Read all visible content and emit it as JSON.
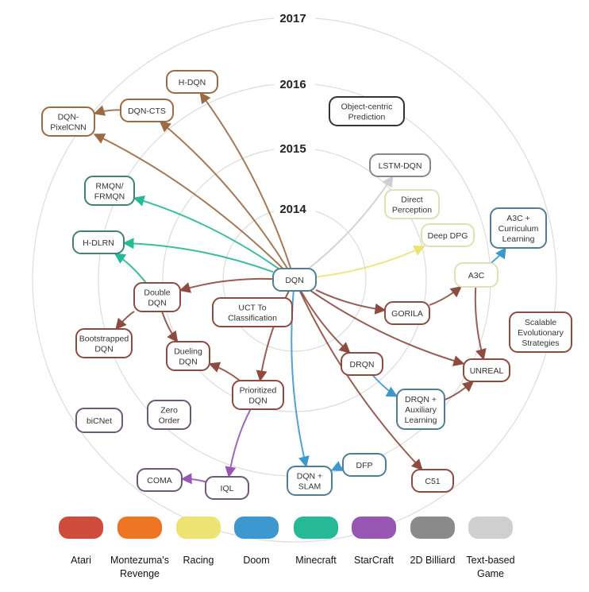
{
  "years": [
    "2014",
    "2015",
    "2016",
    "2017"
  ],
  "categories": {
    "atari": {
      "label": "Atari",
      "color": "#cf4b3c",
      "border": "#8e4b40"
    },
    "montezuma": {
      "label": "Montezuma's Revenge",
      "color": "#ee7524",
      "border": "#9c6a44"
    },
    "racing": {
      "label": "Racing",
      "color": "#ece373",
      "border": "#dfe0b8"
    },
    "doom": {
      "label": "Doom",
      "color": "#3d98d0",
      "border": "#4f7f92"
    },
    "minecraft": {
      "label": "Minecraft",
      "color": "#27b896",
      "border": "#3f8276"
    },
    "starcraft": {
      "label": "StarCraft",
      "color": "#9656b2",
      "border": "#6e5a78"
    },
    "billiard": {
      "label": "2D Billiard",
      "color": "#8a8a8a",
      "border": "#333333"
    },
    "text": {
      "label": "Text-based Game",
      "color": "#cfcfcf",
      "border": "#888888"
    }
  },
  "legend_order": [
    "atari",
    "montezuma",
    "racing",
    "doom",
    "minecraft",
    "starcraft",
    "billiard",
    "text"
  ],
  "legend_lines": {
    "atari": [
      "Atari"
    ],
    "montezuma": [
      "Montezuma's",
      "Revenge"
    ],
    "racing": [
      "Racing"
    ],
    "doom": [
      "Doom"
    ],
    "minecraft": [
      "Minecraft"
    ],
    "starcraft": [
      "StarCraft"
    ],
    "billiard": [
      "2D Billiard"
    ],
    "text": [
      "Text-based",
      "Game"
    ]
  },
  "nodes": [
    {
      "id": "hdqn",
      "lines": [
        "H-DQN"
      ],
      "cat": "montezuma"
    },
    {
      "id": "dqncts",
      "lines": [
        "DQN-CTS"
      ],
      "cat": "montezuma"
    },
    {
      "id": "pixelcnn",
      "lines": [
        "DQN-",
        "PixelCNN"
      ],
      "cat": "montezuma"
    },
    {
      "id": "objpred",
      "lines": [
        "Object-centric",
        "Prediction"
      ],
      "cat": "billiard"
    },
    {
      "id": "lstm",
      "lines": [
        "LSTM-DQN"
      ],
      "cat": "text"
    },
    {
      "id": "rmqn",
      "lines": [
        "RMQN/",
        "FRMQN"
      ],
      "cat": "minecraft"
    },
    {
      "id": "directp",
      "lines": [
        "Direct",
        "Perception"
      ],
      "cat": "racing"
    },
    {
      "id": "ddpg",
      "lines": [
        "Deep DPG"
      ],
      "cat": "racing"
    },
    {
      "id": "a3ccl",
      "lines": [
        "A3C +",
        "Curriculum",
        "Learning"
      ],
      "cat": "doom"
    },
    {
      "id": "hdlrn",
      "lines": [
        "H-DLRN"
      ],
      "cat": "minecraft"
    },
    {
      "id": "dqn",
      "lines": [
        "DQN"
      ],
      "cat": "doom"
    },
    {
      "id": "a3c",
      "lines": [
        "A3C"
      ],
      "cat": "racing"
    },
    {
      "id": "double",
      "lines": [
        "Double",
        "DQN"
      ],
      "cat": "atari"
    },
    {
      "id": "uct",
      "lines": [
        "UCT To",
        "Classification"
      ],
      "cat": "atari"
    },
    {
      "id": "gorila",
      "lines": [
        "GORILA"
      ],
      "cat": "atari"
    },
    {
      "id": "boot",
      "lines": [
        "Bootstrapped",
        "DQN"
      ],
      "cat": "atari"
    },
    {
      "id": "ses",
      "lines": [
        "Scalable",
        "Evolutionary",
        "Strategies"
      ],
      "cat": "atari"
    },
    {
      "id": "dueling",
      "lines": [
        "Dueling",
        "DQN"
      ],
      "cat": "atari"
    },
    {
      "id": "drqn",
      "lines": [
        "DRQN"
      ],
      "cat": "atari"
    },
    {
      "id": "unreal",
      "lines": [
        "UNREAL"
      ],
      "cat": "atari"
    },
    {
      "id": "prior",
      "lines": [
        "Prioritized",
        "DQN"
      ],
      "cat": "atari"
    },
    {
      "id": "drqnaux",
      "lines": [
        "DRQN +",
        "Auxiliary",
        "Learning"
      ],
      "cat": "doom"
    },
    {
      "id": "bicnet",
      "lines": [
        "biCNet"
      ],
      "cat": "starcraft"
    },
    {
      "id": "zero",
      "lines": [
        "Zero",
        "Order"
      ],
      "cat": "starcraft"
    },
    {
      "id": "dfp",
      "lines": [
        "DFP"
      ],
      "cat": "doom"
    },
    {
      "id": "slam",
      "lines": [
        "DQN +",
        "SLAM"
      ],
      "cat": "doom"
    },
    {
      "id": "c51",
      "lines": [
        "C51"
      ],
      "cat": "atari"
    },
    {
      "id": "coma",
      "lines": [
        "COMA"
      ],
      "cat": "starcraft"
    },
    {
      "id": "iql",
      "lines": [
        "IQL"
      ],
      "cat": "starcraft"
    }
  ],
  "edges": [
    {
      "from": "dqn",
      "to": "hdqn",
      "cat": "montezuma"
    },
    {
      "from": "dqn",
      "to": "dqncts",
      "cat": "montezuma"
    },
    {
      "from": "dqn",
      "to": "pixelcnn",
      "cat": "montezuma"
    },
    {
      "from": "dqncts",
      "to": "pixelcnn",
      "cat": "montezuma"
    },
    {
      "from": "dqn",
      "to": "rmqn",
      "cat": "minecraft"
    },
    {
      "from": "dqn",
      "to": "hdlrn",
      "cat": "minecraft"
    },
    {
      "from": "double",
      "to": "hdlrn",
      "cat": "minecraft"
    },
    {
      "from": "dqn",
      "to": "lstm",
      "cat": "text"
    },
    {
      "from": "dqn",
      "to": "ddpg",
      "cat": "racing"
    },
    {
      "from": "dqn",
      "to": "double",
      "cat": "atari"
    },
    {
      "from": "double",
      "to": "boot",
      "cat": "atari"
    },
    {
      "from": "double",
      "to": "dueling",
      "cat": "atari"
    },
    {
      "from": "prior",
      "to": "dueling",
      "cat": "atari"
    },
    {
      "from": "dqn",
      "to": "prior",
      "cat": "atari"
    },
    {
      "from": "dqn",
      "to": "gorila",
      "cat": "atari"
    },
    {
      "from": "gorila",
      "to": "a3c",
      "cat": "atari"
    },
    {
      "from": "a3c",
      "to": "a3ccl",
      "cat": "doom"
    },
    {
      "from": "a3c",
      "to": "unreal",
      "cat": "atari"
    },
    {
      "from": "dqn",
      "to": "unreal",
      "cat": "atari"
    },
    {
      "from": "dqn",
      "to": "drqn",
      "cat": "atari"
    },
    {
      "from": "drqn",
      "to": "drqnaux",
      "cat": "doom"
    },
    {
      "from": "drqnaux",
      "to": "unreal",
      "cat": "atari"
    },
    {
      "from": "dqn",
      "to": "c51",
      "cat": "atari"
    },
    {
      "from": "dqn",
      "to": "slam",
      "cat": "doom"
    },
    {
      "from": "dfp",
      "to": "slam",
      "cat": "doom"
    },
    {
      "from": "prior",
      "to": "iql",
      "cat": "starcraft"
    },
    {
      "from": "iql",
      "to": "coma",
      "cat": "starcraft"
    }
  ]
}
